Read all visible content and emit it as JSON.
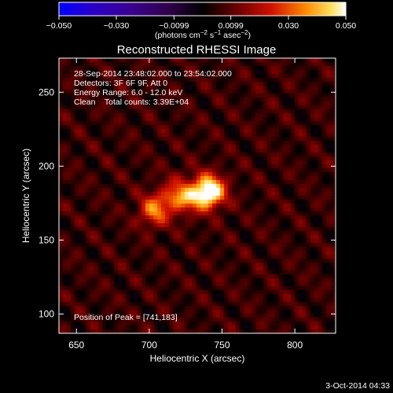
{
  "chart_data": {
    "type": "heatmap",
    "title": "Reconstructed RHESSI Image",
    "xlabel": "Heliocentric X (arcsec)",
    "ylabel": "Heliocentric Y (arcsec)",
    "xlim": [
      638,
      828
    ],
    "ylim": [
      87,
      273
    ],
    "x_ticks": [
      650,
      700,
      750,
      800
    ],
    "y_ticks": [
      100,
      150,
      200,
      250
    ],
    "x_tick_labels": [
      "650",
      "700",
      "750",
      "800"
    ],
    "y_tick_labels": [
      "100",
      "150",
      "200",
      "250"
    ],
    "colorbar": {
      "colormap": "hot",
      "range": [
        -0.05,
        0.05
      ],
      "ticks": [
        -0.05,
        -0.03,
        -0.0099,
        0.0099,
        0.03,
        0.05
      ],
      "tick_labels": [
        "−0.050",
        "−0.030",
        "−0.0099",
        "0.0099",
        "0.030",
        "0.050"
      ],
      "unit_prefix": "(photons cm",
      "unit_exp1": "−2",
      "unit_mid": " s",
      "unit_exp2": "−1",
      "unit_mid2": " asec",
      "unit_exp3": "−2",
      "unit_suffix": ")"
    },
    "annotations": {
      "time_range": "28-Sep-2014 23:48:02.000 to 23:54:02.000",
      "detectors": "Detectors: 3F 6F 9F, Att 0",
      "energy": "Energy Range: 6.0 - 12.0 keV",
      "clean": "Clean    Total counts: 3.39E+04",
      "peak": "Position of Peak = [741,183]"
    },
    "sources": [
      {
        "x": 741,
        "y": 183,
        "peak": 0.05
      },
      {
        "x": 703,
        "y": 169,
        "peak": 0.026
      },
      {
        "x": 722,
        "y": 180,
        "peak": 0.02
      }
    ],
    "peak_position": [
      741,
      183
    ]
  },
  "footer": {
    "date": "3-Oct-2014 04:33"
  }
}
